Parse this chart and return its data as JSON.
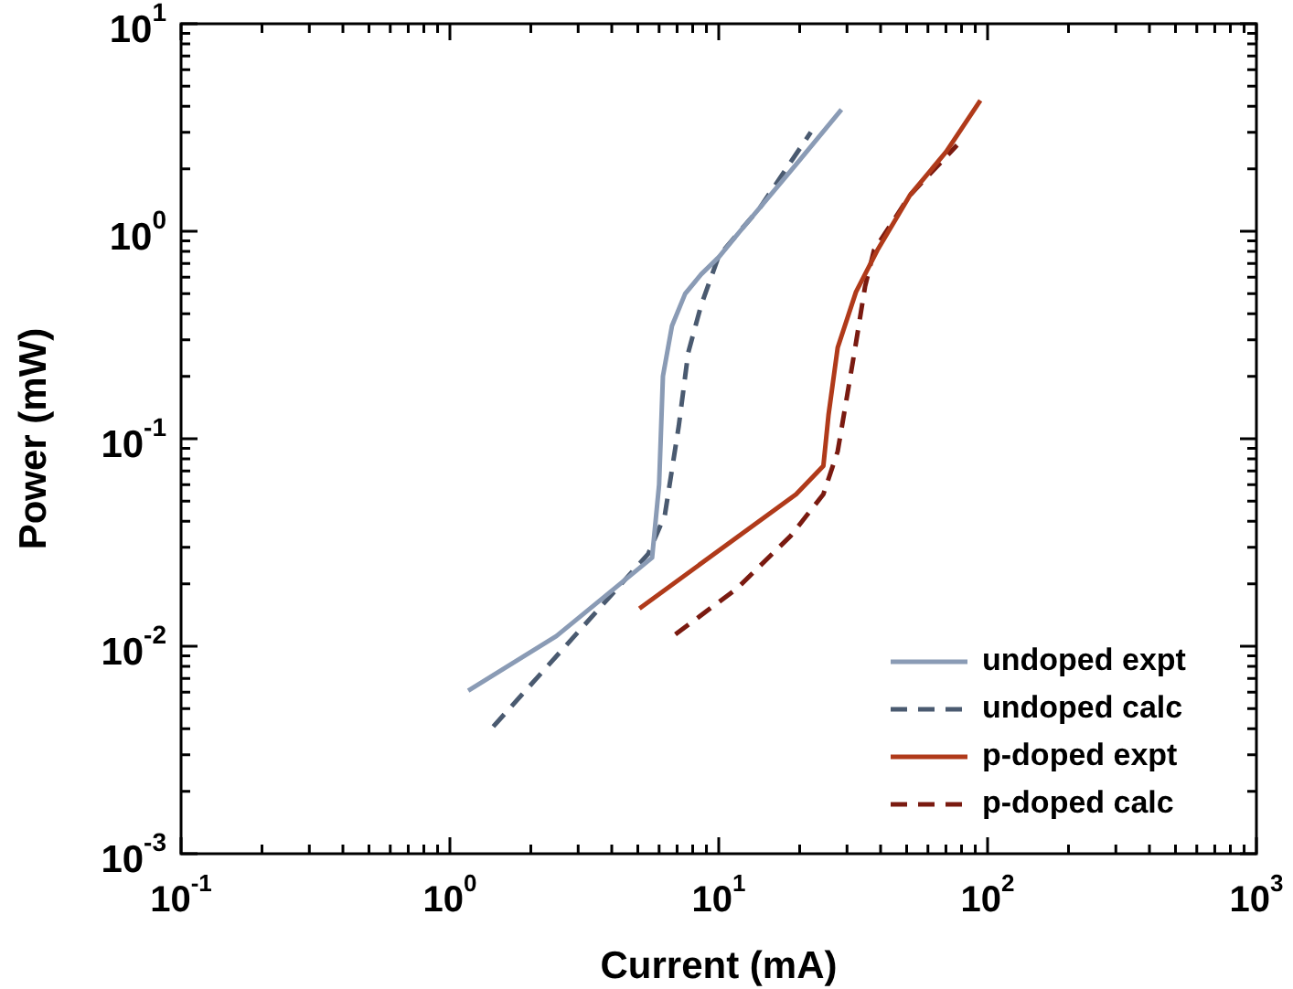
{
  "chart_data": {
    "type": "line",
    "xlabel": "Current (mA)",
    "ylabel": "Power (mW)",
    "log": "xy",
    "marker": "none",
    "legend": "bottom right",
    "xlim": [
      0.1,
      1000
    ],
    "ylim": [
      0.001,
      10
    ],
    "xticks": [
      {
        "value": 0.1,
        "label": "10$^{-1}$"
      },
      {
        "value": 0.2,
        "label": null
      },
      {
        "value": 0.3,
        "label": null
      },
      {
        "value": 0.4,
        "label": null
      },
      {
        "value": 0.5,
        "label": null
      },
      {
        "value": 0.6,
        "label": null
      },
      {
        "value": 0.7,
        "label": null
      },
      {
        "value": 0.8,
        "label": null
      },
      {
        "value": 0.9,
        "label": null
      },
      {
        "value": 1,
        "label": "10$^{0}$"
      },
      {
        "value": 2,
        "label": null
      },
      {
        "value": 3,
        "label": null
      },
      {
        "value": 4,
        "label": null
      },
      {
        "value": 5,
        "label": null
      },
      {
        "value": 6,
        "label": null
      },
      {
        "value": 7,
        "label": null
      },
      {
        "value": 8,
        "label": null
      },
      {
        "value": 9,
        "label": null
      },
      {
        "value": 10,
        "label": "10$^{1}$"
      },
      {
        "value": 20,
        "label": null
      },
      {
        "value": 30,
        "label": null
      },
      {
        "value": 40,
        "label": null
      },
      {
        "value": 50,
        "label": null
      },
      {
        "value": 60,
        "label": null
      },
      {
        "value": 70,
        "label": null
      },
      {
        "value": 80,
        "label": null
      },
      {
        "value": 90,
        "label": null
      },
      {
        "value": 100,
        "label": "10$^{2}$"
      },
      {
        "value": 200,
        "label": null
      },
      {
        "value": 300,
        "label": null
      },
      {
        "value": 400,
        "label": null
      },
      {
        "value": 500,
        "label": null
      },
      {
        "value": 600,
        "label": null
      },
      {
        "value": 700,
        "label": null
      },
      {
        "value": 800,
        "label": null
      },
      {
        "value": 900,
        "label": null
      },
      {
        "value": 1000,
        "label": "10$^{3}$"
      }
    ],
    "yticks": [
      {
        "value": 0.001,
        "label": "10$^{-3}$"
      },
      {
        "value": 0.002,
        "label": null
      },
      {
        "value": 0.003,
        "label": null
      },
      {
        "value": 0.004,
        "label": null
      },
      {
        "value": 0.005,
        "label": null
      },
      {
        "value": 0.006,
        "label": null
      },
      {
        "value": 0.007,
        "label": null
      },
      {
        "value": 0.008,
        "label": null
      },
      {
        "value": 0.009,
        "label": null
      },
      {
        "value": 0.01,
        "label": "10$^{-2}$"
      },
      {
        "value": 0.02,
        "label": null
      },
      {
        "value": 0.03,
        "label": null
      },
      {
        "value": 0.04,
        "label": null
      },
      {
        "value": 0.05,
        "label": null
      },
      {
        "value": 0.06,
        "label": null
      },
      {
        "value": 0.07,
        "label": null
      },
      {
        "value": 0.08,
        "label": null
      },
      {
        "value": 0.09,
        "label": null
      },
      {
        "value": 0.1,
        "label": "10$^{-1}$"
      },
      {
        "value": 0.2,
        "label": null
      },
      {
        "value": 0.3,
        "label": null
      },
      {
        "value": 0.4,
        "label": null
      },
      {
        "value": 0.5,
        "label": null
      },
      {
        "value": 0.6,
        "label": null
      },
      {
        "value": 0.7,
        "label": null
      },
      {
        "value": 0.8,
        "label": null
      },
      {
        "value": 0.9,
        "label": null
      },
      {
        "value": 1,
        "label": "10$^{0}$"
      },
      {
        "value": 2,
        "label": null
      },
      {
        "value": 3,
        "label": null
      },
      {
        "value": 4,
        "label": null
      },
      {
        "value": 5,
        "label": null
      },
      {
        "value": 6,
        "label": null
      },
      {
        "value": 7,
        "label": null
      },
      {
        "value": 8,
        "label": null
      },
      {
        "value": 9,
        "label": null
      },
      {
        "value": 10,
        "label": "10$^{1}$"
      }
    ],
    "series": [
      {
        "name": "undoped expt",
        "color": "#8a9bb5",
        "line_style": "solid",
        "x": [
          1.17,
          2.49,
          5.65,
          6.0,
          6.2,
          6.7,
          7.5,
          8.6,
          10,
          12,
          14.3,
          19.4,
          28.6
        ],
        "values": [
          0.0061,
          0.0112,
          0.0267,
          0.06,
          0.2,
          0.35,
          0.5,
          0.62,
          0.75,
          1.0,
          1.31,
          2.1,
          3.86
        ]
      },
      {
        "name": "undoped calc",
        "color": "#4a5a70",
        "line_style": "dashed",
        "x": [
          1.45,
          5.47,
          6.3,
          7.1,
          7.7,
          8.6,
          10,
          14.3,
          22
        ],
        "values": [
          0.0041,
          0.0279,
          0.0427,
          0.115,
          0.26,
          0.44,
          0.76,
          1.31,
          3.0
        ]
      },
      {
        "name": "p-doped expt",
        "color": "#b03a1a",
        "line_style": "solid",
        "x": [
          5.07,
          19.4,
          24.5,
          25.6,
          27.7,
          32.4,
          38.9,
          51.4,
          70.2,
          94
        ],
        "values": [
          0.0152,
          0.054,
          0.074,
          0.13,
          0.275,
          0.51,
          0.81,
          1.49,
          2.42,
          4.27
        ]
      },
      {
        "name": "p-doped calc",
        "color": "#7a1a10",
        "line_style": "dashed",
        "x": [
          6.9,
          11.7,
          18.5,
          24.5,
          27.7,
          30,
          32.4,
          35,
          37.8,
          51.4,
          77
        ],
        "values": [
          0.0114,
          0.019,
          0.034,
          0.054,
          0.087,
          0.16,
          0.29,
          0.54,
          0.81,
          1.49,
          2.6
        ]
      }
    ]
  }
}
